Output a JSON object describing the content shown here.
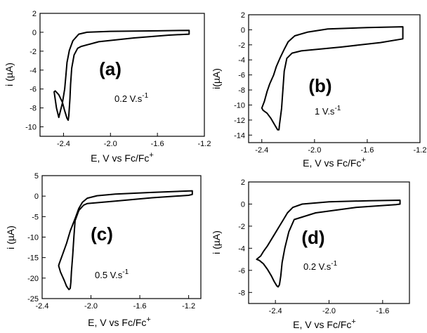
{
  "chart_data": [
    {
      "id": "a",
      "type": "line",
      "panel_label": "(a)",
      "scan_rate": "0.2 V.s",
      "scan_rate_exp": "-1",
      "xlabel": "E, V vs Fc/Fc",
      "xlabel_sup": "+",
      "ylabel": "i (µA)",
      "xlim": [
        -2.6,
        -1.2
      ],
      "ylim": [
        -11,
        2
      ],
      "xticks": [
        -2.4,
        -2.0,
        -1.6,
        -1.2
      ],
      "xtick_labels": [
        "-2.4",
        "-2.0",
        "-1.6",
        "-1.2"
      ],
      "yticks": [
        2,
        0,
        -2,
        -4,
        -6,
        -8,
        -10
      ],
      "ytick_labels": [
        "2",
        "0",
        "-2",
        "-4",
        "-6",
        "-8",
        "-10"
      ],
      "series": [
        {
          "x": [
            -1.33,
            -1.6,
            -2.0,
            -2.2,
            -2.27,
            -2.32,
            -2.35,
            -2.37,
            -2.38,
            -2.39,
            -2.41,
            -2.44,
            -2.46,
            -2.48,
            -2.47,
            -2.44,
            -2.41,
            -2.39,
            -2.37,
            -2.36,
            -2.355,
            -2.345,
            -2.34,
            -2.33,
            -2.31,
            -2.28,
            -2.25,
            -2.1,
            -1.8,
            -1.5,
            -1.33,
            -1.33
          ],
          "y": [
            0.2,
            0.15,
            0.1,
            0.0,
            -0.2,
            -0.9,
            -1.9,
            -3.2,
            -4.6,
            -6.0,
            -7.5,
            -9.0,
            -8.0,
            -6.3,
            -6.2,
            -6.6,
            -7.4,
            -8.3,
            -9.1,
            -9.3,
            -8.8,
            -7.0,
            -5.5,
            -3.8,
            -2.4,
            -1.7,
            -1.5,
            -1.0,
            -0.6,
            -0.3,
            -0.2,
            0.2
          ]
        }
      ]
    },
    {
      "id": "b",
      "type": "line",
      "panel_label": "(b)",
      "scan_rate": "1 V.s",
      "scan_rate_exp": "-1",
      "xlabel": "E, V vs Fc/Fc",
      "xlabel_sup": "+",
      "ylabel": "i(µA)",
      "xlim": [
        -2.5,
        -1.2
      ],
      "ylim": [
        -15,
        2
      ],
      "xticks": [
        -2.4,
        -2.0,
        -1.6,
        -1.2
      ],
      "xtick_labels": [
        "-2.4",
        "-2.0",
        "-1.6",
        "-1.2"
      ],
      "yticks": [
        2,
        0,
        -2,
        -4,
        -6,
        -8,
        -10,
        -12,
        -14
      ],
      "ytick_labels": [
        "2",
        "0",
        "-2",
        "-4",
        "-6",
        "-8",
        "-10",
        "-12",
        "-14"
      ],
      "series": [
        {
          "x": [
            -1.33,
            -1.6,
            -1.9,
            -2.05,
            -2.15,
            -2.2,
            -2.23,
            -2.26,
            -2.29,
            -2.31,
            -2.34,
            -2.36,
            -2.38,
            -2.4,
            -2.39,
            -2.36,
            -2.33,
            -2.3,
            -2.28,
            -2.27,
            -2.265,
            -2.25,
            -2.24,
            -2.23,
            -2.21,
            -2.17,
            -2.1,
            -1.8,
            -1.5,
            -1.33,
            -1.33
          ],
          "y": [
            0.4,
            0.3,
            0.1,
            -0.3,
            -0.8,
            -1.6,
            -2.6,
            -3.7,
            -4.9,
            -6.0,
            -7.2,
            -8.2,
            -9.5,
            -10.4,
            -10.7,
            -11.1,
            -11.8,
            -12.7,
            -13.3,
            -13.3,
            -12.5,
            -10.5,
            -8.0,
            -5.5,
            -3.8,
            -3.1,
            -2.8,
            -2.3,
            -1.7,
            -1.2,
            0.4
          ]
        }
      ]
    },
    {
      "id": "c",
      "type": "line",
      "panel_label": "(c)",
      "scan_rate": "0.5 V.s",
      "scan_rate_exp": "-1",
      "xlabel": "E, V vs Fc/Fc",
      "xlabel_sup": "+",
      "ylabel": "i (µA)",
      "xlim": [
        -2.4,
        -1.1
      ],
      "ylim": [
        -25,
        5
      ],
      "xticks": [
        -2.4,
        -2.0,
        -1.6,
        -1.2
      ],
      "xtick_labels": [
        "-2.4",
        "-2.0",
        "-1.6",
        "-1.2"
      ],
      "yticks": [
        5,
        0,
        -5,
        -10,
        -15,
        -20,
        -25
      ],
      "ytick_labels": [
        "5",
        "0",
        "-5",
        "-10",
        "-15",
        "-20",
        "-25"
      ],
      "series": [
        {
          "x": [
            -1.17,
            -1.5,
            -1.8,
            -1.95,
            -2.03,
            -2.07,
            -2.1,
            -2.13,
            -2.17,
            -2.2,
            -2.23,
            -2.26,
            -2.265,
            -2.25,
            -2.22,
            -2.2,
            -2.18,
            -2.17,
            -2.165,
            -2.16,
            -2.15,
            -2.14,
            -2.13,
            -2.1,
            -2.06,
            -2.03,
            -1.8,
            -1.5,
            -1.2,
            -1.17,
            -1.17
          ],
          "y": [
            1.3,
            0.9,
            0.5,
            0.1,
            -0.5,
            -1.5,
            -3.0,
            -5.5,
            -8.5,
            -11.5,
            -14.0,
            -16.5,
            -17.0,
            -18.5,
            -20.5,
            -22.0,
            -22.8,
            -22.5,
            -21.0,
            -18.5,
            -14.5,
            -10.0,
            -6.0,
            -3.5,
            -2.2,
            -1.8,
            -1.2,
            -0.4,
            0.2,
            0.4,
            1.3
          ]
        }
      ]
    },
    {
      "id": "d",
      "type": "line",
      "panel_label": "(d)",
      "scan_rate": "0.2 V.s",
      "scan_rate_exp": "-1",
      "xlabel": "E, V vs Fc/Fc",
      "xlabel_sup": "+",
      "ylabel": "i (µA)",
      "xlim": [
        -2.6,
        -1.4
      ],
      "ylim": [
        -9,
        2
      ],
      "xticks": [
        -2.4,
        -2.0,
        -1.6
      ],
      "xtick_labels": [
        "-2.4",
        "-2.0",
        "-1.6"
      ],
      "yticks": [
        2,
        0,
        -2,
        -4,
        -6,
        -8
      ],
      "ytick_labels": [
        "2",
        "0",
        "-2",
        "-4",
        "-6",
        "-8"
      ],
      "series": [
        {
          "x": [
            -1.47,
            -1.7,
            -2.0,
            -2.2,
            -2.27,
            -2.31,
            -2.34,
            -2.37,
            -2.4,
            -2.43,
            -2.46,
            -2.49,
            -2.51,
            -2.54,
            -2.52,
            -2.49,
            -2.46,
            -2.43,
            -2.41,
            -2.39,
            -2.38,
            -2.37,
            -2.36,
            -2.35,
            -2.33,
            -2.3,
            -2.26,
            -2.1,
            -1.8,
            -1.5,
            -1.47,
            -1.47
          ],
          "y": [
            0.35,
            0.3,
            0.2,
            0.0,
            -0.3,
            -0.8,
            -1.4,
            -2.0,
            -2.6,
            -3.2,
            -3.8,
            -4.3,
            -4.7,
            -5.0,
            -5.1,
            -5.4,
            -5.9,
            -6.5,
            -7.0,
            -7.4,
            -7.5,
            -7.3,
            -6.5,
            -5.3,
            -4.0,
            -2.5,
            -1.4,
            -0.8,
            -0.3,
            -0.05,
            0.0,
            0.35
          ]
        }
      ]
    }
  ]
}
